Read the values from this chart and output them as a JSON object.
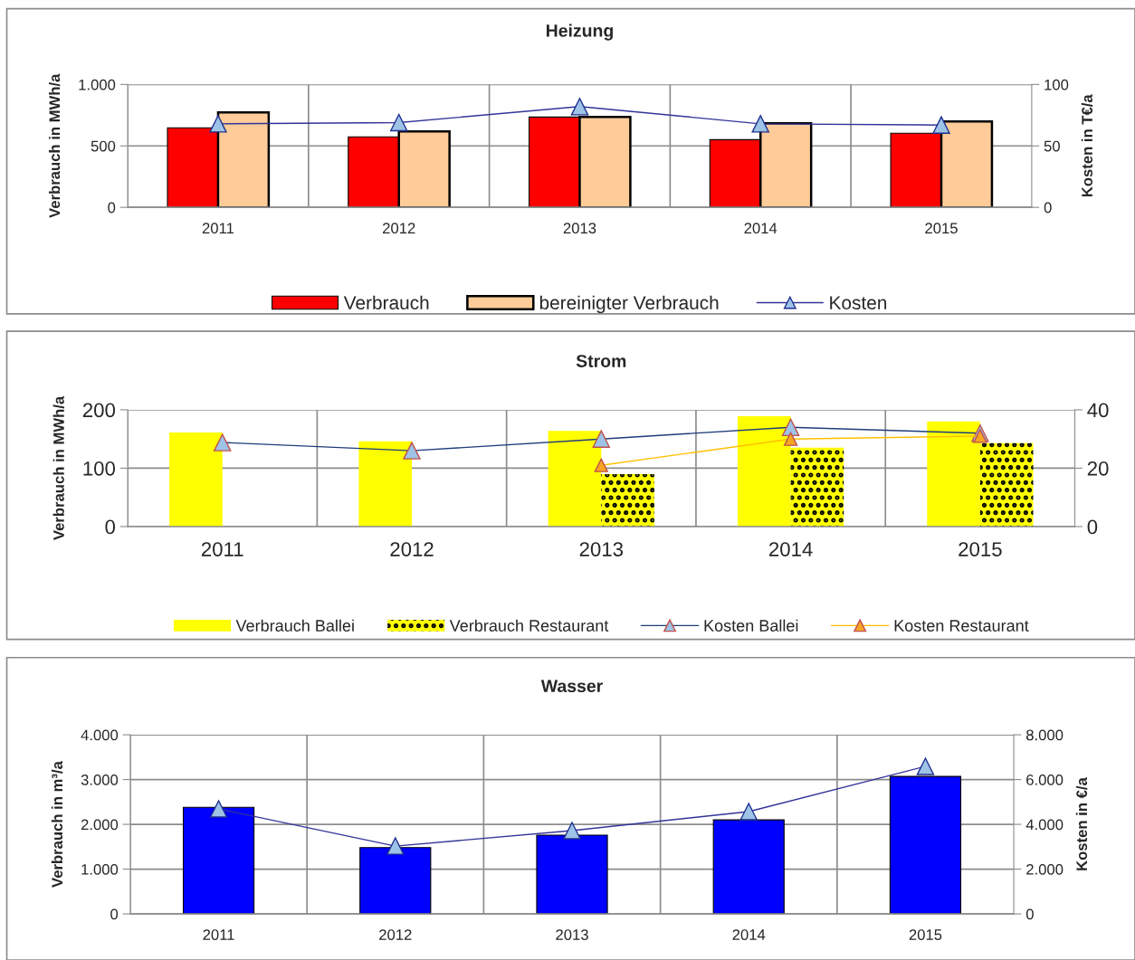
{
  "chart_data": [
    {
      "type": "bar",
      "title": "Heizung",
      "ylabel": "Verbrauch in MWh/a",
      "y2label": "Kosten in T€/a",
      "categories": [
        "2011",
        "2012",
        "2013",
        "2014",
        "2015"
      ],
      "series": [
        {
          "name": "Verbrauch",
          "color": "#ff0000",
          "values": [
            647,
            574,
            735,
            551,
            603
          ]
        },
        {
          "name": "bereinigter Verbrauch",
          "color": "#ffcc99",
          "values": [
            772,
            618,
            735,
            684,
            699
          ]
        },
        {
          "name": "Kosten",
          "type": "line",
          "axis": "y2",
          "color": "#333399",
          "values": [
            68,
            69,
            82,
            68,
            67
          ]
        }
      ],
      "ylim": [
        0,
        1000
      ],
      "yticks": [
        0,
        500,
        {
          "value": 1000,
          "label": "1.000"
        }
      ],
      "y2lim": [
        0,
        100
      ],
      "y2ticks": [
        0,
        50,
        100
      ],
      "grid": true,
      "legend": "bottom",
      "marker": "triangle"
    },
    {
      "type": "bar",
      "title": "Strom",
      "ylabel": "Verbrauch in MWh/a",
      "categories": [
        "2011",
        "2012",
        "2013",
        "2014",
        "2015"
      ],
      "series": [
        {
          "name": "Verbrauch Ballei",
          "color": "#ffff00",
          "values": [
            161,
            146,
            164,
            189,
            180
          ]
        },
        {
          "name": "Verbrauch Restaurant",
          "color": "#ffff00",
          "values": [
            null,
            null,
            90,
            135,
            143
          ]
        },
        {
          "name": "Kosten Ballei",
          "type": "line",
          "axis": "y2",
          "color": "#1f3d7a",
          "values": [
            28.8,
            26,
            30,
            34,
            32
          ]
        },
        {
          "name": "Kosten Restaurant",
          "type": "line",
          "axis": "y2",
          "color": "#ffc000",
          "values": [
            null,
            null,
            21,
            30,
            31
          ]
        }
      ],
      "ylim": [
        0,
        200
      ],
      "yticks": [
        0,
        100,
        200
      ],
      "y2lim": [
        0,
        40
      ],
      "y2ticks": [
        0,
        20,
        40
      ],
      "grid": true,
      "legend": "bottom",
      "marker": "triangle"
    },
    {
      "type": "bar",
      "title": "Wasser",
      "ylabel": "Verbrauch in m³/a",
      "y2label": "Kosten in €/a",
      "categories": [
        "2011",
        "2012",
        "2013",
        "2014",
        "2015"
      ],
      "series": [
        {
          "color": "#0000ff",
          "values": [
            2380,
            1480,
            1760,
            2100,
            3070
          ]
        },
        {
          "type": "line",
          "axis": "y2",
          "color": "#333399",
          "values": [
            4690,
            3030,
            3720,
            4570,
            6590
          ]
        }
      ],
      "ylim": [
        0,
        4000
      ],
      "yticks": [
        0,
        {
          "value": 1000,
          "label": "1.000"
        },
        {
          "value": 2000,
          "label": "2.000"
        },
        {
          "value": 3000,
          "label": "3.000"
        },
        {
          "value": 4000,
          "label": "4.000"
        }
      ],
      "y2lim": [
        0,
        8000
      ],
      "y2ticks": [
        0,
        {
          "value": 2000,
          "label": "2.000"
        },
        {
          "value": 4000,
          "label": "4.000"
        },
        {
          "value": 6000,
          "label": "6.000"
        },
        {
          "value": 8000,
          "label": "8.000"
        }
      ],
      "grid": true,
      "marker": "triangle"
    }
  ]
}
